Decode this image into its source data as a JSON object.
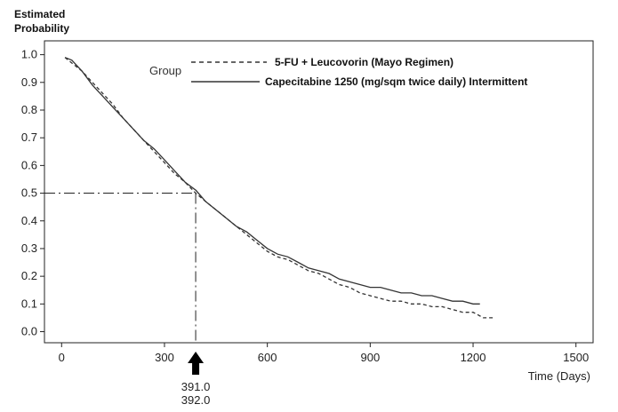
{
  "chart_data": {
    "type": "line",
    "ylabel_line1": "Estimated",
    "ylabel_line2": "Probability",
    "xlabel": "Time (Days)",
    "xlim": [
      -50,
      1550
    ],
    "ylim": [
      -0.04,
      1.05
    ],
    "x_ticks": [
      0,
      300,
      600,
      900,
      1200,
      1500
    ],
    "y_ticks": [
      0.0,
      0.1,
      0.2,
      0.3,
      0.4,
      0.5,
      0.6,
      0.7,
      0.8,
      0.9,
      1.0
    ],
    "x_tick_labels": [
      "0",
      "300",
      "600",
      "900",
      "1200",
      "1500"
    ],
    "y_tick_labels": [
      "0.0",
      "0.1",
      "0.2",
      "0.3",
      "0.4",
      "0.5",
      "0.6",
      "0.7",
      "0.8",
      "0.9",
      "1.0"
    ],
    "grid": false,
    "legend": {
      "title": "Group",
      "placement": "top-right"
    },
    "series": [
      {
        "name": "5-FU + Leucovorin (Mayo Regimen)",
        "style": "dashed",
        "color": "#333333",
        "x": [
          10,
          30,
          60,
          90,
          120,
          150,
          180,
          210,
          240,
          270,
          300,
          330,
          360,
          391,
          420,
          450,
          480,
          510,
          540,
          570,
          600,
          630,
          660,
          690,
          720,
          750,
          780,
          810,
          840,
          870,
          900,
          930,
          960,
          990,
          1020,
          1050,
          1080,
          1110,
          1140,
          1170,
          1200,
          1230,
          1260
        ],
        "y": [
          0.99,
          0.97,
          0.94,
          0.9,
          0.86,
          0.82,
          0.77,
          0.73,
          0.69,
          0.65,
          0.61,
          0.57,
          0.54,
          0.5,
          0.47,
          0.44,
          0.41,
          0.38,
          0.35,
          0.32,
          0.29,
          0.27,
          0.26,
          0.24,
          0.22,
          0.21,
          0.19,
          0.17,
          0.16,
          0.14,
          0.13,
          0.12,
          0.11,
          0.11,
          0.1,
          0.1,
          0.09,
          0.09,
          0.08,
          0.07,
          0.07,
          0.05,
          0.05
        ]
      },
      {
        "name": "Capecitabine 1250 (mg/sqm twice daily) Intermittent",
        "style": "solid",
        "color": "#333333",
        "x": [
          10,
          30,
          60,
          90,
          120,
          150,
          180,
          210,
          240,
          270,
          300,
          330,
          360,
          392,
          420,
          450,
          480,
          510,
          540,
          570,
          600,
          630,
          660,
          690,
          720,
          750,
          780,
          810,
          840,
          870,
          900,
          930,
          960,
          990,
          1020,
          1050,
          1080,
          1110,
          1140,
          1170,
          1200,
          1220
        ],
        "y": [
          0.99,
          0.98,
          0.94,
          0.89,
          0.85,
          0.81,
          0.77,
          0.73,
          0.69,
          0.66,
          0.62,
          0.58,
          0.54,
          0.51,
          0.47,
          0.44,
          0.41,
          0.38,
          0.36,
          0.33,
          0.3,
          0.28,
          0.27,
          0.25,
          0.23,
          0.22,
          0.21,
          0.19,
          0.18,
          0.17,
          0.16,
          0.16,
          0.15,
          0.14,
          0.14,
          0.13,
          0.13,
          0.12,
          0.11,
          0.11,
          0.1,
          0.1
        ]
      }
    ],
    "median_reference": {
      "y": 0.5,
      "x": 391,
      "labels": [
        "391.0",
        "392.0"
      ]
    }
  }
}
